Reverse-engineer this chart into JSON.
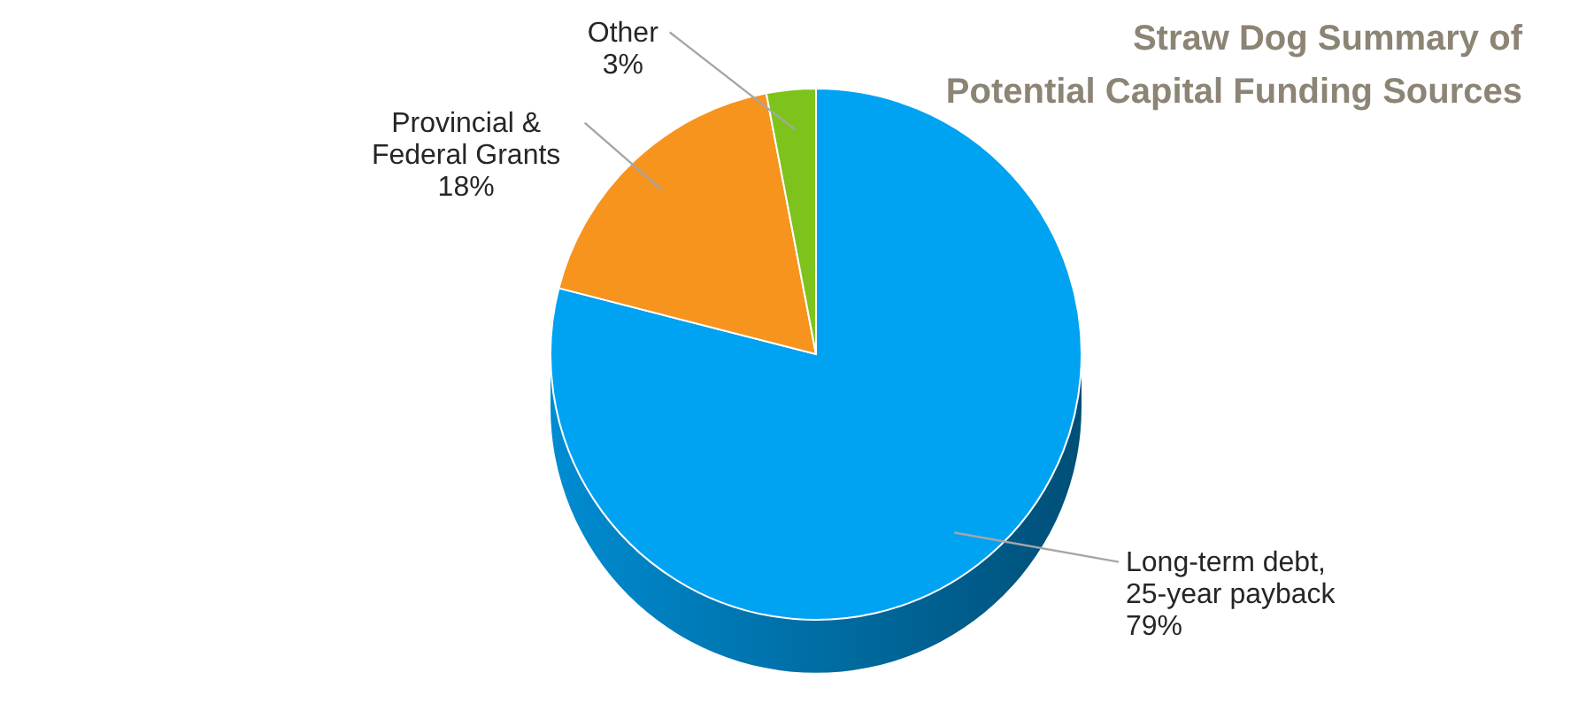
{
  "chart_data": {
    "type": "pie",
    "title": "Straw Dog Summary of\nPotential Capital Funding Sources",
    "categories": [
      "Long-term debt,\n25-year payback",
      "Provincial &\nFederal Grants",
      "Other"
    ],
    "values": [
      79,
      18,
      3
    ],
    "colors": [
      "#00a2f2",
      "#f7941d",
      "#7dc31c"
    ],
    "data_labels": true,
    "value_labels": [
      "79%",
      "18%",
      "3%"
    ],
    "legend": false
  }
}
